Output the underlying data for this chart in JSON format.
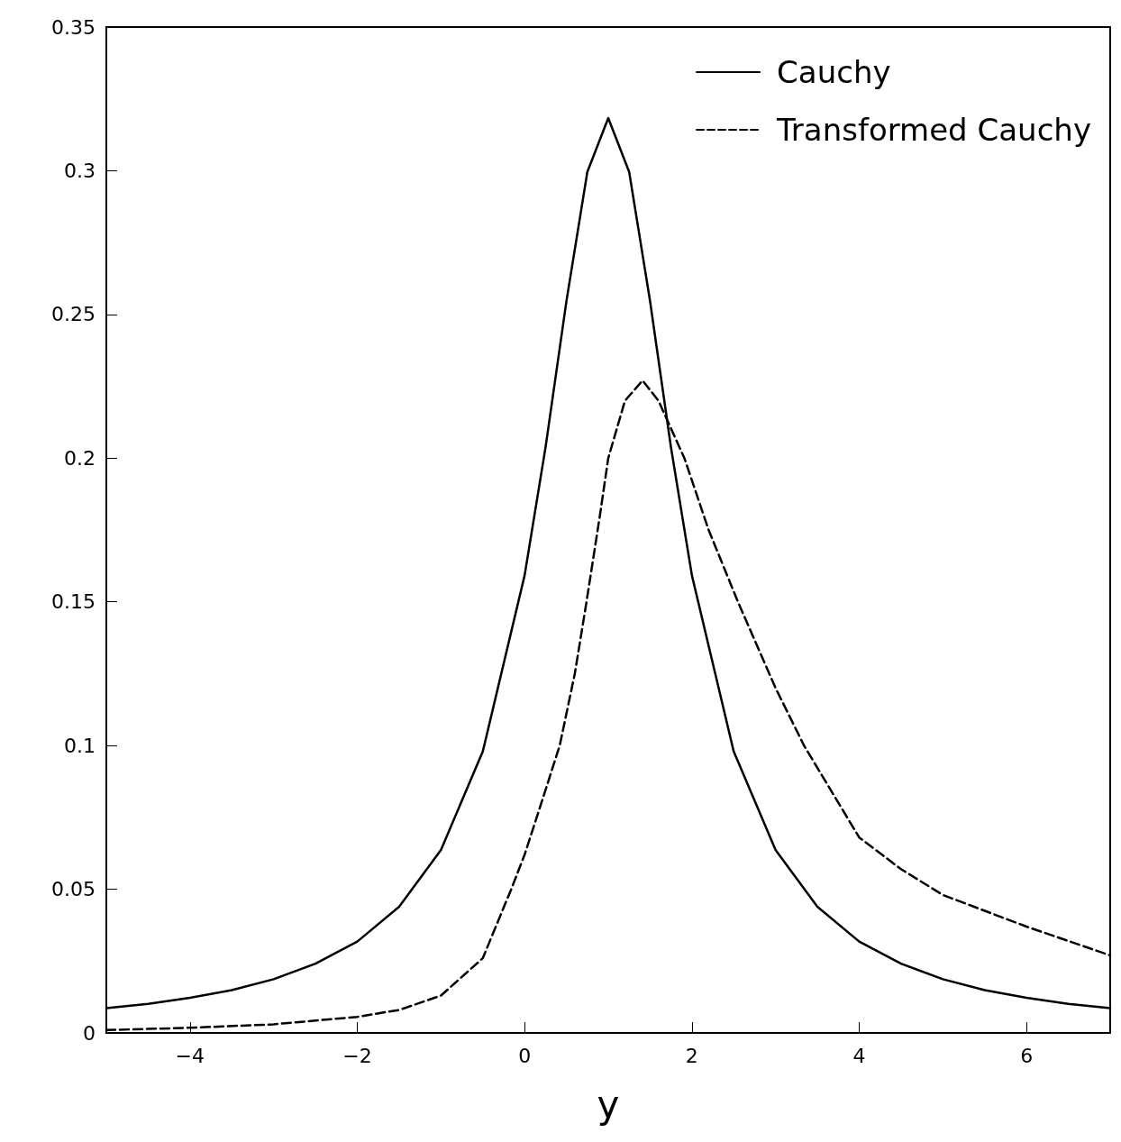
{
  "chart_data": {
    "type": "line",
    "xlabel": "y",
    "xlim": [
      -5,
      7
    ],
    "xticks": [
      {
        "value": -4,
        "label": "−4"
      },
      {
        "value": -2,
        "label": "−2"
      },
      0,
      2,
      4,
      6
    ],
    "ylim": [
      0,
      0.35
    ],
    "yticks": [
      0,
      0.05,
      0.1,
      0.15,
      0.2,
      0.25,
      0.3,
      0.35
    ],
    "grid": false,
    "legend": "top right",
    "marker": "none",
    "series": [
      {
        "name": "Cauchy",
        "color": "#000000",
        "line_style": "solid",
        "x": [
          -5,
          -4.5,
          -4,
          -3.5,
          -3,
          -2.5,
          -2,
          -1.5,
          -1,
          -0.5,
          0,
          0.25,
          0.5,
          0.75,
          1,
          1.25,
          1.5,
          1.75,
          2,
          2.5,
          3,
          3.5,
          4,
          4.5,
          5,
          5.5,
          6,
          6.5,
          7
        ],
        "values": [
          0.0086,
          0.0101,
          0.0122,
          0.0149,
          0.0187,
          0.0241,
          0.0318,
          0.0439,
          0.0637,
          0.0979,
          0.1592,
          0.2037,
          0.2546,
          0.2996,
          0.3183,
          0.2996,
          0.2546,
          0.2037,
          0.1592,
          0.0979,
          0.0637,
          0.0439,
          0.0318,
          0.0241,
          0.0187,
          0.0149,
          0.0122,
          0.0101,
          0.0086
        ]
      },
      {
        "name": "Transformed Cauchy",
        "color": "#000000",
        "line_style": "dashed",
        "x": [
          -5,
          -4,
          -3,
          -2,
          -1.5,
          -1,
          -0.5,
          -0.16,
          0,
          0.2,
          0.42,
          0.6,
          0.74,
          0.9,
          1,
          1.2,
          1.41,
          1.6,
          1.91,
          2.2,
          2.55,
          3,
          3.34,
          4,
          4.5,
          5,
          6,
          7
        ],
        "values": [
          0.001,
          0.0018,
          0.003,
          0.0056,
          0.008,
          0.013,
          0.026,
          0.05,
          0.062,
          0.08,
          0.1,
          0.125,
          0.15,
          0.18,
          0.2,
          0.22,
          0.227,
          0.22,
          0.2,
          0.175,
          0.15,
          0.12,
          0.1,
          0.068,
          0.057,
          0.048,
          0.037,
          0.027
        ]
      }
    ]
  }
}
